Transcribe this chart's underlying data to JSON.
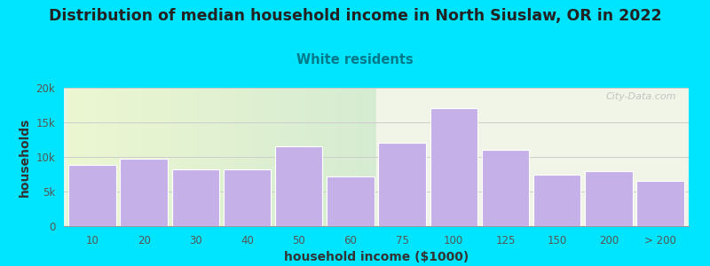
{
  "title": "Distribution of median household income in North Siuslaw, OR in 2022",
  "subtitle": "White residents",
  "xlabel": "household income ($1000)",
  "ylabel": "households",
  "tick_labels": [
    "10",
    "20",
    "30",
    "40",
    "50",
    "60",
    "75",
    "100",
    "125",
    "150",
    "200",
    "> 200"
  ],
  "tick_positions": [
    0,
    1,
    2,
    3,
    4,
    5,
    6,
    7,
    8,
    9,
    10,
    11
  ],
  "values": [
    8800,
    9800,
    8200,
    8200,
    11500,
    7200,
    12000,
    17000,
    11000,
    7500,
    8000,
    6500
  ],
  "bar_color": "#c5b0e8",
  "background_color": "#00e5ff",
  "plot_bg_color_left": "#e8f5e9",
  "plot_bg_color_right": "#f0f5e8",
  "title_color": "#222222",
  "subtitle_color": "#007a8a",
  "axis_label_color": "#333333",
  "tick_color": "#555555",
  "ylim": [
    0,
    20000
  ],
  "yticks": [
    0,
    5000,
    10000,
    15000,
    20000
  ],
  "watermark": "City-Data.com",
  "title_fontsize": 12.5,
  "subtitle_fontsize": 10.5,
  "label_fontsize": 10
}
